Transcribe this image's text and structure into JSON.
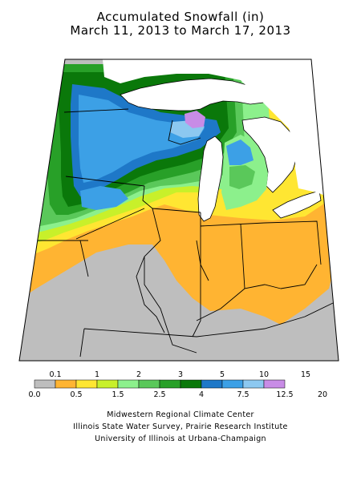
{
  "title_line1": "Accumulated Snowfall (in)",
  "title_line2": "March 11, 2013 to March 17, 2013",
  "legend": {
    "top_labels": [
      "0.1",
      "1",
      "2",
      "3",
      "5",
      "10",
      "15"
    ],
    "bottom_labels": [
      "0.0",
      "0.5",
      "1.5",
      "2.5",
      "4",
      "7.5",
      "12.5",
      "20"
    ],
    "colors": [
      "#bebebe",
      "#ffb432",
      "#ffe632",
      "#c8f02a",
      "#8cf08c",
      "#5ac85a",
      "#28a028",
      "#0a780a",
      "#1e78c8",
      "#3ca0e6",
      "#8cc8f0",
      "#c88ce6"
    ]
  },
  "credits": [
    "Midwestern Regional Climate Center",
    "Illinois State Water Survey, Prairie Research Institute",
    "University of Illinois at Urbana-Champaign"
  ],
  "colors": {
    "trace": "#bebebe",
    "light_orange": "#ffb432",
    "yellow": "#ffe632",
    "lime": "#c8f02a",
    "light_green": "#8cf08c",
    "green": "#5ac85a",
    "dark_green": "#28a028",
    "deepest_green": "#0a780a",
    "blue": "#1e78c8",
    "light_blue": "#3ca0e6",
    "pale_blue": "#8cc8f0",
    "violet": "#c88ce6",
    "lake": "#ffffff"
  }
}
